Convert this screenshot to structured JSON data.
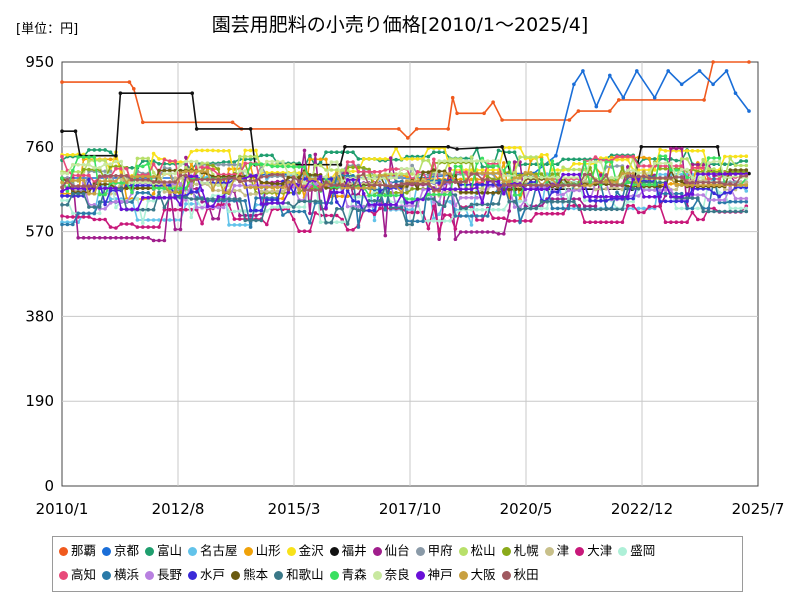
{
  "unit_label": "[単位：円]",
  "chart_data": {
    "type": "line",
    "title": "園芸用肥料の小売り価格[2010/1～2025/4]",
    "xlabel": "",
    "ylabel": "",
    "x_ticks": [
      "2010/1",
      "2012/8",
      "2015/3",
      "2017/10",
      "2020/5",
      "2022/12",
      "2025/7"
    ],
    "y_ticks": [
      0,
      190,
      380,
      570,
      760,
      950
    ],
    "ylim": [
      0,
      950
    ],
    "xlim": [
      "2010/1",
      "2025/7"
    ],
    "grid": true,
    "legend_position": "bottom",
    "series": [
      {
        "name": "那覇",
        "color": "#f05a1e",
        "base": 905,
        "amp": 6,
        "marker": true,
        "values": [
          [
            2010.0,
            905
          ],
          [
            2011.5,
            905
          ],
          [
            2011.6,
            890
          ],
          [
            2011.8,
            815
          ],
          [
            2013.8,
            815
          ],
          [
            2014.0,
            800
          ],
          [
            2017.5,
            800
          ],
          [
            2017.7,
            780
          ],
          [
            2017.9,
            800
          ],
          [
            2018.6,
            800
          ],
          [
            2018.7,
            870
          ],
          [
            2018.8,
            835
          ],
          [
            2019.4,
            835
          ],
          [
            2019.6,
            860
          ],
          [
            2019.8,
            820
          ],
          [
            2021.3,
            820
          ],
          [
            2021.5,
            840
          ],
          [
            2022.2,
            840
          ],
          [
            2022.4,
            865
          ],
          [
            2024.3,
            865
          ],
          [
            2024.5,
            950
          ],
          [
            2025.3,
            950
          ]
        ]
      },
      {
        "name": "京都",
        "color": "#1a6ed8",
        "base": 680,
        "amp": 40,
        "marker": true,
        "values": [
          [
            2010.0,
            690
          ],
          [
            2013.0,
            690
          ],
          [
            2015.0,
            700
          ],
          [
            2016.0,
            690
          ],
          [
            2018.0,
            690
          ],
          [
            2019.0,
            700
          ],
          [
            2020.5,
            700
          ],
          [
            2021.0,
            740
          ],
          [
            2021.4,
            900
          ],
          [
            2021.6,
            930
          ],
          [
            2021.9,
            850
          ],
          [
            2022.2,
            920
          ],
          [
            2022.5,
            870
          ],
          [
            2022.8,
            930
          ],
          [
            2023.2,
            870
          ],
          [
            2023.5,
            930
          ],
          [
            2023.8,
            900
          ],
          [
            2024.2,
            930
          ],
          [
            2024.5,
            900
          ],
          [
            2024.8,
            930
          ],
          [
            2025.0,
            880
          ],
          [
            2025.3,
            840
          ]
        ]
      },
      {
        "name": "富山",
        "color": "#1f9e6e",
        "base": 730,
        "amp": 30,
        "marker": true,
        "values": []
      },
      {
        "name": "名古屋",
        "color": "#62c3ea",
        "base": 640,
        "amp": 60,
        "marker": true,
        "values": []
      },
      {
        "name": "山形",
        "color": "#f0a20a",
        "base": 690,
        "amp": 50,
        "marker": true,
        "values": []
      },
      {
        "name": "金沢",
        "color": "#f8e21a",
        "base": 720,
        "amp": 40,
        "marker": true,
        "values": []
      },
      {
        "name": "福井",
        "color": "#111111",
        "base": 720,
        "amp": 8,
        "marker": true,
        "values": [
          [
            2010.0,
            795
          ],
          [
            2010.3,
            795
          ],
          [
            2010.4,
            740
          ],
          [
            2011.2,
            740
          ],
          [
            2011.3,
            880
          ],
          [
            2012.9,
            880
          ],
          [
            2013.0,
            800
          ],
          [
            2014.2,
            800
          ],
          [
            2014.3,
            720
          ],
          [
            2016.2,
            720
          ],
          [
            2016.3,
            760
          ],
          [
            2018.6,
            760
          ],
          [
            2018.8,
            755
          ],
          [
            2019.8,
            760
          ],
          [
            2020.1,
            665
          ],
          [
            2022.7,
            665
          ],
          [
            2022.9,
            760
          ],
          [
            2024.6,
            760
          ],
          [
            2024.7,
            700
          ],
          [
            2025.3,
            700
          ]
        ]
      },
      {
        "name": "仙台",
        "color": "#a01e8c",
        "base": 660,
        "amp": 110,
        "marker": true,
        "values": []
      },
      {
        "name": "甲府",
        "color": "#8a9aa8",
        "base": 690,
        "amp": 30,
        "marker": true,
        "values": []
      },
      {
        "name": "松山",
        "color": "#b8e06a",
        "base": 700,
        "amp": 40,
        "marker": true,
        "values": []
      },
      {
        "name": "札幌",
        "color": "#8aaa1a",
        "base": 690,
        "amp": 35,
        "marker": true,
        "values": []
      },
      {
        "name": "津",
        "color": "#c8c08a",
        "base": 670,
        "amp": 20,
        "marker": true,
        "values": []
      },
      {
        "name": "大津",
        "color": "#c8187a",
        "base": 600,
        "amp": 30,
        "marker": true,
        "values": []
      },
      {
        "name": "盛岡",
        "color": "#aef0d8",
        "base": 640,
        "amp": 60,
        "marker": true,
        "values": []
      },
      {
        "name": "高知",
        "color": "#e84a7a",
        "base": 700,
        "amp": 40,
        "marker": true,
        "values": []
      },
      {
        "name": "横浜",
        "color": "#2a7aa8",
        "base": 640,
        "amp": 60,
        "marker": true,
        "values": []
      },
      {
        "name": "長野",
        "color": "#b880e0",
        "base": 650,
        "amp": 30,
        "marker": true,
        "values": []
      },
      {
        "name": "水戸",
        "color": "#3a2ad8",
        "base": 650,
        "amp": 40,
        "marker": true,
        "values": []
      },
      {
        "name": "熊本",
        "color": "#6a5a10",
        "base": 680,
        "amp": 30,
        "marker": true,
        "values": []
      },
      {
        "name": "和歌山",
        "color": "#3a7888",
        "base": 630,
        "amp": 50,
        "marker": true,
        "values": []
      },
      {
        "name": "青森",
        "color": "#3ae060",
        "base": 690,
        "amp": 50,
        "marker": true,
        "values": []
      },
      {
        "name": "奈良",
        "color": "#c8e8a0",
        "base": 700,
        "amp": 30,
        "marker": true,
        "values": []
      },
      {
        "name": "神戸",
        "color": "#6a10d8",
        "base": 660,
        "amp": 40,
        "marker": true,
        "values": []
      },
      {
        "name": "大阪",
        "color": "#c8a040",
        "base": 680,
        "amp": 25,
        "marker": true,
        "values": []
      },
      {
        "name": "秋田",
        "color": "#a05a60",
        "base": 680,
        "amp": 20,
        "marker": true,
        "values": []
      }
    ]
  }
}
